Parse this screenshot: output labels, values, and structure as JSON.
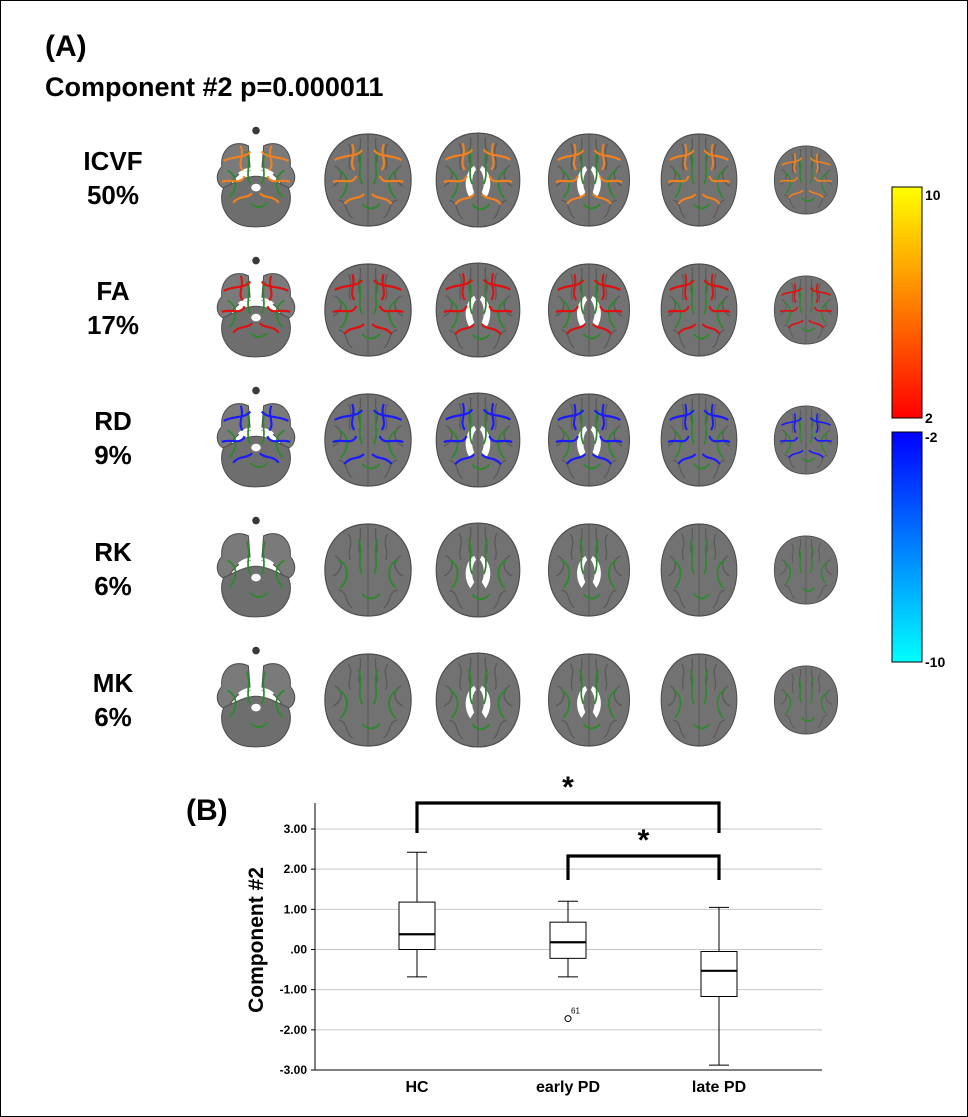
{
  "panel_a": {
    "label": "(A)",
    "title": "Component #2 p=0.000011",
    "rows": [
      {
        "metric": "ICVF",
        "percent": "50%",
        "fill": "orange"
      },
      {
        "metric": "FA",
        "percent": "17%",
        "fill": "red"
      },
      {
        "metric": "RD",
        "percent": "9%",
        "fill": "blue"
      },
      {
        "metric": "RK",
        "percent": "6%",
        "fill": "green"
      },
      {
        "metric": "MK",
        "percent": "6%",
        "fill": "green"
      }
    ],
    "colorbar": {
      "pos_max": "10",
      "pos_min": "2",
      "neg_min": "-2",
      "neg_max": "-10",
      "pos_colors": [
        "#ffff00",
        "#ff8000",
        "#ff0000"
      ],
      "neg_colors": [
        "#0000ff",
        "#00ffff"
      ]
    },
    "tract_colors": {
      "orange": "#f08020",
      "red": "#e01010",
      "blue": "#1a1aff",
      "green": "#2a8a2a"
    }
  },
  "panel_b": {
    "label": "(B)",
    "chart_data": {
      "type": "box",
      "ylabel": "Component #2",
      "ylim": [
        -3,
        3.2
      ],
      "yticks": [
        3,
        2,
        1,
        0,
        -1,
        -2,
        -3
      ],
      "ytick_labels": [
        "3.00",
        "2.00",
        "1.00",
        ".00",
        "-1.00",
        "-2.00",
        "-3.00"
      ],
      "categories": [
        "HC",
        "early PD",
        "late PD"
      ],
      "boxes": [
        {
          "group": "HC",
          "whisker_low": -0.68,
          "q1": 0.0,
          "median": 0.38,
          "q3": 1.18,
          "whisker_high": 2.42
        },
        {
          "group": "early PD",
          "whisker_low": -0.68,
          "q1": -0.22,
          "median": 0.18,
          "q3": 0.68,
          "whisker_high": 1.2
        },
        {
          "group": "late PD",
          "whisker_low": -2.88,
          "q1": -1.17,
          "median": -0.53,
          "q3": -0.05,
          "whisker_high": 1.05
        }
      ],
      "outliers": [
        {
          "group": "early PD",
          "value": -1.72,
          "label": "61"
        }
      ],
      "significance": [
        {
          "from": "HC",
          "to": "late PD",
          "marker": "*"
        },
        {
          "from": "early PD",
          "to": "late PD",
          "marker": "*"
        }
      ]
    }
  }
}
